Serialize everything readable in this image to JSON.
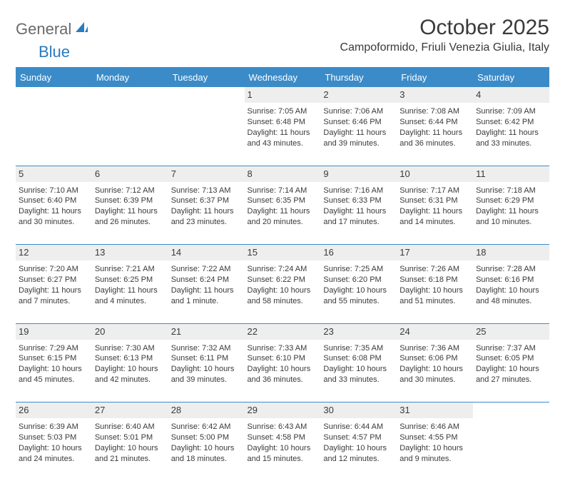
{
  "logo": {
    "text1": "General",
    "text2": "Blue"
  },
  "title": "October 2025",
  "location": "Campoformido, Friuli Venezia Giulia, Italy",
  "colors": {
    "header_bg": "#3b8bc8",
    "header_text": "#ffffff",
    "daynum_bg": "#eeeeee",
    "border": "#3b8bc8",
    "text": "#3a3a3a",
    "logo_gray": "#6a6a6a",
    "logo_blue": "#2b7bbf"
  },
  "fonts": {
    "title_size": 30,
    "location_size": 16,
    "dayhead_size": 13,
    "daynum_size": 13,
    "info_size": 11
  },
  "weekdays": [
    "Sunday",
    "Monday",
    "Tuesday",
    "Wednesday",
    "Thursday",
    "Friday",
    "Saturday"
  ],
  "weeks": [
    [
      null,
      null,
      null,
      {
        "n": "1",
        "sr": "7:05 AM",
        "ss": "6:48 PM",
        "dl": "11 hours and 43 minutes."
      },
      {
        "n": "2",
        "sr": "7:06 AM",
        "ss": "6:46 PM",
        "dl": "11 hours and 39 minutes."
      },
      {
        "n": "3",
        "sr": "7:08 AM",
        "ss": "6:44 PM",
        "dl": "11 hours and 36 minutes."
      },
      {
        "n": "4",
        "sr": "7:09 AM",
        "ss": "6:42 PM",
        "dl": "11 hours and 33 minutes."
      }
    ],
    [
      {
        "n": "5",
        "sr": "7:10 AM",
        "ss": "6:40 PM",
        "dl": "11 hours and 30 minutes."
      },
      {
        "n": "6",
        "sr": "7:12 AM",
        "ss": "6:39 PM",
        "dl": "11 hours and 26 minutes."
      },
      {
        "n": "7",
        "sr": "7:13 AM",
        "ss": "6:37 PM",
        "dl": "11 hours and 23 minutes."
      },
      {
        "n": "8",
        "sr": "7:14 AM",
        "ss": "6:35 PM",
        "dl": "11 hours and 20 minutes."
      },
      {
        "n": "9",
        "sr": "7:16 AM",
        "ss": "6:33 PM",
        "dl": "11 hours and 17 minutes."
      },
      {
        "n": "10",
        "sr": "7:17 AM",
        "ss": "6:31 PM",
        "dl": "11 hours and 14 minutes."
      },
      {
        "n": "11",
        "sr": "7:18 AM",
        "ss": "6:29 PM",
        "dl": "11 hours and 10 minutes."
      }
    ],
    [
      {
        "n": "12",
        "sr": "7:20 AM",
        "ss": "6:27 PM",
        "dl": "11 hours and 7 minutes."
      },
      {
        "n": "13",
        "sr": "7:21 AM",
        "ss": "6:25 PM",
        "dl": "11 hours and 4 minutes."
      },
      {
        "n": "14",
        "sr": "7:22 AM",
        "ss": "6:24 PM",
        "dl": "11 hours and 1 minute."
      },
      {
        "n": "15",
        "sr": "7:24 AM",
        "ss": "6:22 PM",
        "dl": "10 hours and 58 minutes."
      },
      {
        "n": "16",
        "sr": "7:25 AM",
        "ss": "6:20 PM",
        "dl": "10 hours and 55 minutes."
      },
      {
        "n": "17",
        "sr": "7:26 AM",
        "ss": "6:18 PM",
        "dl": "10 hours and 51 minutes."
      },
      {
        "n": "18",
        "sr": "7:28 AM",
        "ss": "6:16 PM",
        "dl": "10 hours and 48 minutes."
      }
    ],
    [
      {
        "n": "19",
        "sr": "7:29 AM",
        "ss": "6:15 PM",
        "dl": "10 hours and 45 minutes."
      },
      {
        "n": "20",
        "sr": "7:30 AM",
        "ss": "6:13 PM",
        "dl": "10 hours and 42 minutes."
      },
      {
        "n": "21",
        "sr": "7:32 AM",
        "ss": "6:11 PM",
        "dl": "10 hours and 39 minutes."
      },
      {
        "n": "22",
        "sr": "7:33 AM",
        "ss": "6:10 PM",
        "dl": "10 hours and 36 minutes."
      },
      {
        "n": "23",
        "sr": "7:35 AM",
        "ss": "6:08 PM",
        "dl": "10 hours and 33 minutes."
      },
      {
        "n": "24",
        "sr": "7:36 AM",
        "ss": "6:06 PM",
        "dl": "10 hours and 30 minutes."
      },
      {
        "n": "25",
        "sr": "7:37 AM",
        "ss": "6:05 PM",
        "dl": "10 hours and 27 minutes."
      }
    ],
    [
      {
        "n": "26",
        "sr": "6:39 AM",
        "ss": "5:03 PM",
        "dl": "10 hours and 24 minutes."
      },
      {
        "n": "27",
        "sr": "6:40 AM",
        "ss": "5:01 PM",
        "dl": "10 hours and 21 minutes."
      },
      {
        "n": "28",
        "sr": "6:42 AM",
        "ss": "5:00 PM",
        "dl": "10 hours and 18 minutes."
      },
      {
        "n": "29",
        "sr": "6:43 AM",
        "ss": "4:58 PM",
        "dl": "10 hours and 15 minutes."
      },
      {
        "n": "30",
        "sr": "6:44 AM",
        "ss": "4:57 PM",
        "dl": "10 hours and 12 minutes."
      },
      {
        "n": "31",
        "sr": "6:46 AM",
        "ss": "4:55 PM",
        "dl": "10 hours and 9 minutes."
      },
      null
    ]
  ],
  "labels": {
    "sunrise": "Sunrise: ",
    "sunset": "Sunset: ",
    "daylight": "Daylight: "
  }
}
